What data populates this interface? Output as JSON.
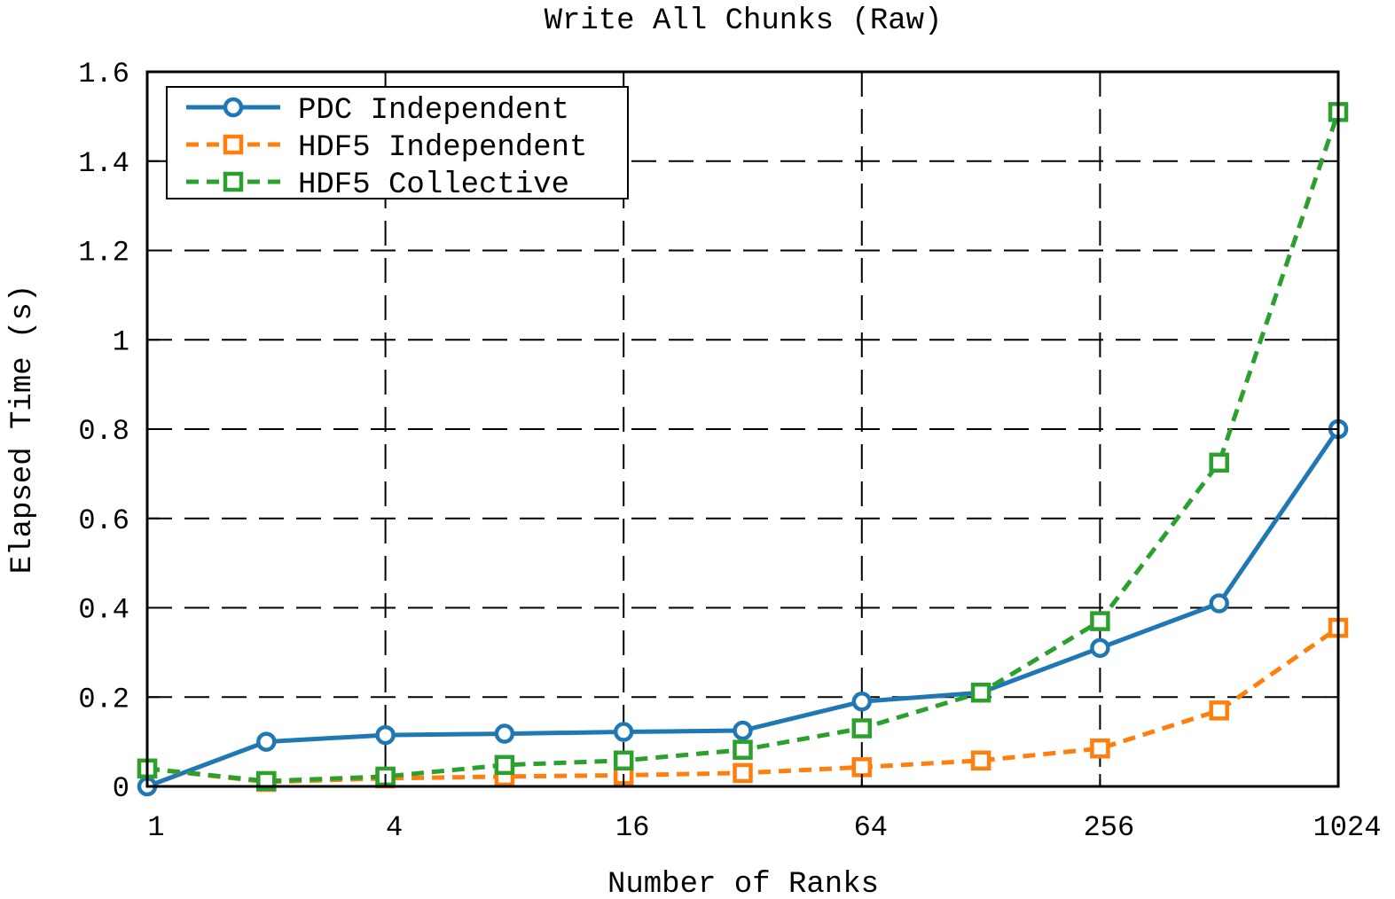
{
  "chart_data": {
    "type": "line",
    "title": "Write All Chunks (Raw)",
    "xlabel": "Number of Ranks",
    "ylabel": "Elapsed Time (s)",
    "x_scale": "log2",
    "x": [
      1,
      2,
      4,
      8,
      16,
      32,
      64,
      128,
      256,
      512,
      1024
    ],
    "x_ticks": [
      1,
      4,
      16,
      64,
      256,
      1024
    ],
    "x_tick_labels": [
      "1",
      "4",
      "16",
      "64",
      "256",
      "1024"
    ],
    "xlim": [
      1,
      1024
    ],
    "ylim": [
      0,
      1.6
    ],
    "y_ticks": [
      0,
      0.2,
      0.4,
      0.6,
      0.8,
      1,
      1.2,
      1.4,
      1.6
    ],
    "y_tick_labels": [
      "0",
      "0.2",
      "0.4",
      "0.6",
      "0.8",
      "1",
      "1.2",
      "1.4",
      "1.6"
    ],
    "grid": true,
    "legend_position": "top-left",
    "series": [
      {
        "name": "PDC Independent",
        "color": "#1f77b4",
        "line_style": "solid",
        "marker": "circle",
        "values": [
          0.0,
          0.1,
          0.115,
          0.118,
          0.122,
          0.125,
          0.19,
          0.21,
          0.31,
          0.41,
          0.8
        ]
      },
      {
        "name": "HDF5 Independent",
        "color": "#ff7f0e",
        "line_style": "dashed",
        "marker": "square",
        "values": [
          0.04,
          0.01,
          0.018,
          0.022,
          0.025,
          0.03,
          0.043,
          0.058,
          0.085,
          0.17,
          0.355
        ]
      },
      {
        "name": "HDF5 Collective",
        "color": "#2ca02c",
        "line_style": "dashed",
        "marker": "square",
        "values": [
          0.04,
          0.012,
          0.022,
          0.048,
          0.058,
          0.082,
          0.13,
          0.21,
          0.37,
          0.725,
          1.51
        ]
      }
    ]
  }
}
